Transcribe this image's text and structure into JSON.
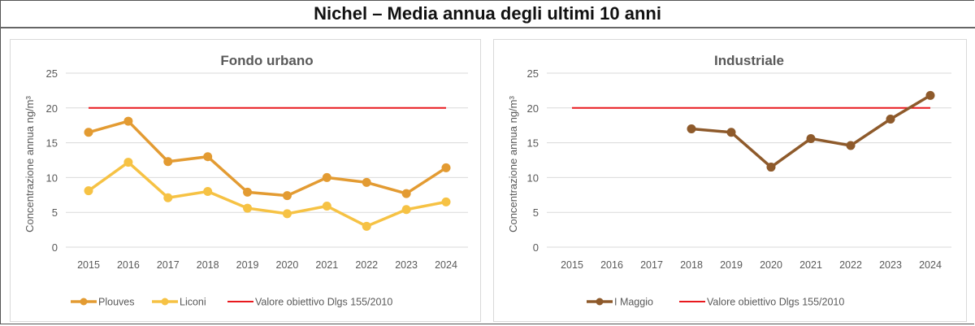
{
  "title": "Nichel – Media annua degli ultimi 10 anni",
  "chart_data": [
    {
      "type": "line",
      "title": "Fondo urbano",
      "ylabel": "Concentrazione annua ng/m³",
      "ylim": [
        0,
        25
      ],
      "yticks": [
        "0",
        "5",
        "10",
        "15",
        "20",
        "25"
      ],
      "grid": true,
      "legend": "bottom",
      "categories": [
        "2015",
        "2016",
        "2017",
        "2018",
        "2019",
        "2020",
        "2021",
        "2022",
        "2023",
        "2024"
      ],
      "series": [
        {
          "name": "Plouves",
          "color": "#e39b32",
          "values": [
            16.5,
            18.1,
            12.3,
            13.0,
            7.9,
            7.4,
            10.0,
            9.3,
            7.7,
            11.4
          ]
        },
        {
          "name": "Liconi",
          "color": "#f6c244",
          "values": [
            8.1,
            12.2,
            7.1,
            8.0,
            5.6,
            4.8,
            5.9,
            3.0,
            5.4,
            6.5
          ]
        },
        {
          "name": "Valore obiettivo Dlgs 155/2010",
          "color": "#e8191e",
          "markers": false,
          "values": [
            20,
            20,
            20,
            20,
            20,
            20,
            20,
            20,
            20,
            20
          ]
        }
      ]
    },
    {
      "type": "line",
      "title": "Industriale",
      "ylabel": "Concentrazione annua ng/m³",
      "ylim": [
        0,
        25
      ],
      "yticks": [
        "0",
        "5",
        "10",
        "15",
        "20",
        "25"
      ],
      "grid": true,
      "legend": "bottom",
      "categories": [
        "2015",
        "2016",
        "2017",
        "2018",
        "2019",
        "2020",
        "2021",
        "2022",
        "2023",
        "2024"
      ],
      "series": [
        {
          "name": "I Maggio",
          "color": "#8e5a2b",
          "values": [
            null,
            null,
            null,
            17.0,
            16.5,
            11.5,
            15.6,
            14.6,
            18.4,
            21.8
          ]
        },
        {
          "name": "Valore obiettivo Dlgs 155/2010",
          "color": "#e8191e",
          "markers": false,
          "values": [
            20,
            20,
            20,
            20,
            20,
            20,
            20,
            20,
            20,
            20
          ]
        }
      ]
    }
  ]
}
